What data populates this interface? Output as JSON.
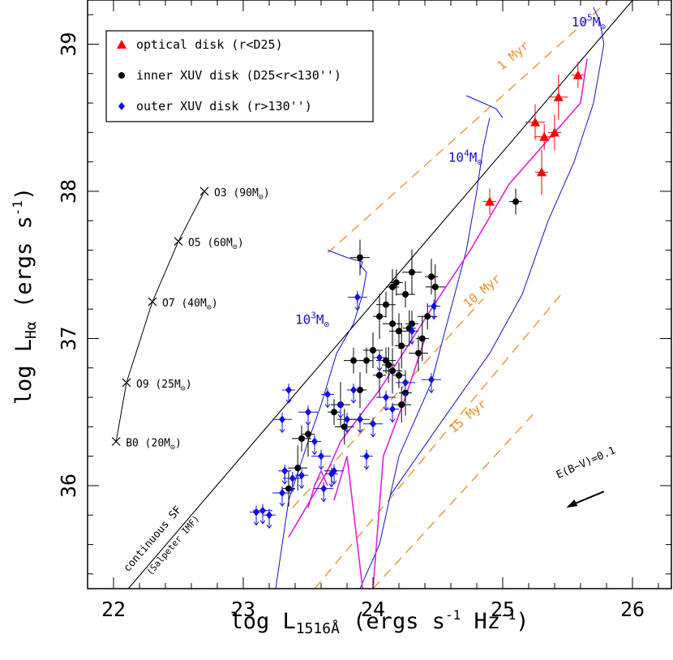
{
  "chart_data": {
    "type": "scatter",
    "xlabel_main": "log L",
    "xlabel_sub": "1516Å",
    "xlabel_units": "(ergs s",
    "xlabel_units_sup": "-1",
    "xlabel_units_end": " Hz",
    "xlabel_units_end_sup": "-1",
    "xlabel_close": ")",
    "ylabel_main": "log L",
    "ylabel_sub": "Hα",
    "ylabel_units": "(ergs s",
    "ylabel_units_sup": "-1",
    "ylabel_close": ")",
    "xlim": [
      21.8,
      26.3
    ],
    "ylim": [
      35.3,
      39.3
    ],
    "xticks": [
      {
        "v": 22,
        "label": "22"
      },
      {
        "v": 23,
        "label": "23"
      },
      {
        "v": 24,
        "label": "24"
      },
      {
        "v": 25,
        "label": "25"
      },
      {
        "v": 26,
        "label": "26"
      }
    ],
    "yticks": [
      {
        "v": 36,
        "label": "36"
      },
      {
        "v": 37,
        "label": "37"
      },
      {
        "v": 38,
        "label": "38"
      },
      {
        "v": 39,
        "label": "39"
      }
    ],
    "legend": {
      "placement": "top-left",
      "entries": [
        {
          "label": "optical disk (r<D25)",
          "marker": "triangle",
          "color": "#ff0000"
        },
        {
          "label": "inner XUV disk (D25<r<130'')",
          "marker": "circle",
          "color": "#000000"
        },
        {
          "label": "outer XUV disk (r>130'')",
          "marker": "diamond",
          "color": "#1010e0"
        }
      ]
    },
    "star_track": {
      "points": [
        {
          "x": 22.7,
          "y": 38.0,
          "label": "O3 (90M",
          "sub": "⊙",
          "close": ")"
        },
        {
          "x": 22.5,
          "y": 37.66,
          "label": "O5 (60M",
          "sub": "⊙",
          "close": ")"
        },
        {
          "x": 22.3,
          "y": 37.25,
          "label": "O7 (40M",
          "sub": "⊙",
          "close": ")"
        },
        {
          "x": 22.1,
          "y": 36.7,
          "label": "O9 (25M",
          "sub": "⊙",
          "close": ")"
        },
        {
          "x": 22.02,
          "y": 36.3,
          "label": "B0 (20M",
          "sub": "⊙",
          "close": ")"
        }
      ]
    },
    "continuous_sf": {
      "label": "continuous SF",
      "sublabel": "(Salpeter IMF)",
      "x": [
        21.9,
        26.1
      ],
      "y": [
        35.08,
        39.4
      ]
    },
    "mass_labels": [
      {
        "x": 25.53,
        "y": 39.12,
        "base": "10",
        "exp": "5",
        "unit": "M",
        "sub": "⊙"
      },
      {
        "x": 24.58,
        "y": 38.2,
        "base": "10",
        "exp": "4",
        "unit": "M",
        "sub": "⊙"
      },
      {
        "x": 23.4,
        "y": 37.1,
        "base": "10",
        "exp": "3",
        "unit": "M",
        "sub": "⊙"
      }
    ],
    "age_labels": [
      {
        "x": 25.1,
        "y": 38.9,
        "label": "1 Myr"
      },
      {
        "x": 24.86,
        "y": 37.3,
        "label": "10 Myr"
      },
      {
        "x": 24.75,
        "y": 36.45,
        "label": "15 Myr"
      }
    ],
    "age_lines": [
      {
        "x": [
          23.65,
          25.82
        ],
        "y": [
          37.58,
          39.3
        ]
      },
      {
        "x": [
          23.38,
          24.85
        ],
        "y": [
          35.85,
          37.27
        ]
      },
      {
        "x": [
          23.55,
          25.45
        ],
        "y": [
          35.3,
          37.3
        ]
      },
      {
        "x": [
          24.0,
          25.25
        ],
        "y": [
          35.3,
          36.5
        ]
      }
    ],
    "reddening": {
      "label": "E(B−V)=0.1",
      "x0": 25.78,
      "y0": 35.96,
      "x1": 25.49,
      "y1": 35.85
    },
    "mass_tracks": [
      {
        "x": [
          23.25,
          23.35,
          23.5,
          23.6,
          23.72,
          23.85,
          23.92,
          23.95,
          23.9
        ],
        "y": [
          35.3,
          35.9,
          36.3,
          36.55,
          36.9,
          37.1,
          37.3,
          37.45,
          37.5
        ]
      },
      {
        "x": [
          23.65,
          23.8,
          23.92,
          23.9
        ],
        "y": [
          37.6,
          37.55,
          37.52,
          37.47
        ]
      },
      {
        "x": [
          23.9,
          24.05,
          24.2,
          24.35,
          24.45,
          24.6,
          24.72,
          24.8,
          24.85,
          24.9
        ],
        "y": [
          35.3,
          35.6,
          36.2,
          36.5,
          36.7,
          37.2,
          37.6,
          38.0,
          38.3,
          38.5
        ]
      },
      {
        "x": [
          24.72,
          24.85,
          24.95,
          25.0
        ],
        "y": [
          38.65,
          38.6,
          38.56,
          38.5
        ]
      },
      {
        "x": [
          24.13,
          24.5,
          24.9,
          25.15,
          25.35,
          25.55,
          25.7,
          25.78,
          25.75,
          25.7
        ],
        "y": [
          35.93,
          36.4,
          36.9,
          37.3,
          37.8,
          38.2,
          38.6,
          39.0,
          39.15,
          39.25
        ]
      }
    ],
    "magenta_tracks": [
      {
        "x": [
          23.35,
          23.55,
          23.65,
          23.75,
          24.05,
          24.45,
          24.75,
          24.85,
          25.05,
          25.4,
          25.55,
          25.6,
          25.65
        ],
        "y": [
          35.65,
          35.95,
          36.1,
          36.3,
          36.65,
          37.2,
          37.6,
          37.75,
          38.05,
          38.4,
          38.55,
          38.6,
          38.9
        ]
      },
      {
        "x": [
          23.7,
          23.8,
          23.88,
          23.92
        ],
        "y": [
          35.9,
          36.2,
          35.6,
          35.3
        ]
      },
      {
        "x": [
          24.0,
          24.08,
          24.25,
          24.4
        ],
        "y": [
          35.3,
          36.2,
          36.6,
          37.0
        ]
      },
      {
        "x": [
          23.5,
          23.55,
          23.6,
          23.65
        ],
        "y": [
          35.85,
          36.0,
          36.1,
          36.0
        ]
      }
    ],
    "series": [
      {
        "name": "optical disk (r<D25)",
        "marker": "triangle",
        "color": "#ff0000",
        "points": [
          [
            24.9,
            37.93
          ],
          [
            25.25,
            38.47
          ],
          [
            25.3,
            38.13
          ],
          [
            25.32,
            38.37
          ],
          [
            25.4,
            38.4
          ],
          [
            25.43,
            38.64
          ],
          [
            25.58,
            38.79
          ]
        ]
      },
      {
        "name": "inner XUV disk (D25<r<130'')",
        "marker": "circle",
        "color": "#000000",
        "points": [
          [
            25.1,
            37.93
          ],
          [
            23.9,
            37.55
          ],
          [
            24.05,
            37.15
          ],
          [
            24.1,
            37.23
          ],
          [
            24.15,
            37.35
          ],
          [
            24.15,
            37.1
          ],
          [
            24.18,
            37.38
          ],
          [
            24.2,
            37.05
          ],
          [
            24.22,
            36.95
          ],
          [
            24.25,
            37.3
          ],
          [
            24.28,
            37.07
          ],
          [
            24.3,
            37.45
          ],
          [
            24.3,
            37.1
          ],
          [
            24.35,
            36.9
          ],
          [
            24.38,
            37.0
          ],
          [
            24.42,
            37.15
          ],
          [
            24.45,
            37.42
          ],
          [
            24.48,
            37.35
          ],
          [
            23.95,
            36.85
          ],
          [
            24.0,
            36.92
          ],
          [
            24.05,
            36.75
          ],
          [
            24.1,
            36.85
          ],
          [
            24.12,
            36.82
          ],
          [
            24.15,
            36.78
          ],
          [
            24.2,
            36.75
          ],
          [
            24.22,
            36.55
          ],
          [
            24.25,
            36.63
          ],
          [
            23.85,
            36.85
          ],
          [
            23.9,
            36.65
          ],
          [
            23.75,
            36.55
          ],
          [
            23.7,
            36.5
          ],
          [
            23.78,
            36.4
          ],
          [
            23.5,
            36.35
          ],
          [
            23.45,
            36.32
          ],
          [
            23.35,
            35.98
          ],
          [
            23.42,
            36.12
          ]
        ]
      },
      {
        "name": "outer XUV disk (r>130'')",
        "marker": "diamond",
        "color": "#1010e0",
        "points": [
          [
            23.1,
            35.82
          ],
          [
            23.15,
            35.83
          ],
          [
            23.2,
            35.8
          ],
          [
            23.3,
            36.45
          ],
          [
            23.35,
            36.65
          ],
          [
            23.3,
            35.95
          ],
          [
            23.32,
            36.1
          ],
          [
            23.38,
            36.05
          ],
          [
            23.45,
            36.07
          ],
          [
            23.5,
            36.5
          ],
          [
            23.55,
            36.3
          ],
          [
            23.6,
            36.2
          ],
          [
            23.65,
            36.62
          ],
          [
            23.7,
            36.1
          ],
          [
            23.75,
            36.55
          ],
          [
            23.8,
            36.45
          ],
          [
            23.85,
            36.65
          ],
          [
            23.9,
            36.45
          ],
          [
            23.95,
            36.2
          ],
          [
            24.0,
            36.42
          ],
          [
            24.05,
            36.87
          ],
          [
            24.1,
            36.6
          ],
          [
            24.15,
            36.52
          ],
          [
            24.25,
            36.7
          ],
          [
            24.3,
            37.05
          ],
          [
            24.45,
            36.72
          ],
          [
            24.47,
            37.22
          ],
          [
            23.88,
            37.28
          ],
          [
            23.68,
            36.08
          ],
          [
            23.62,
            35.98
          ]
        ]
      }
    ]
  }
}
